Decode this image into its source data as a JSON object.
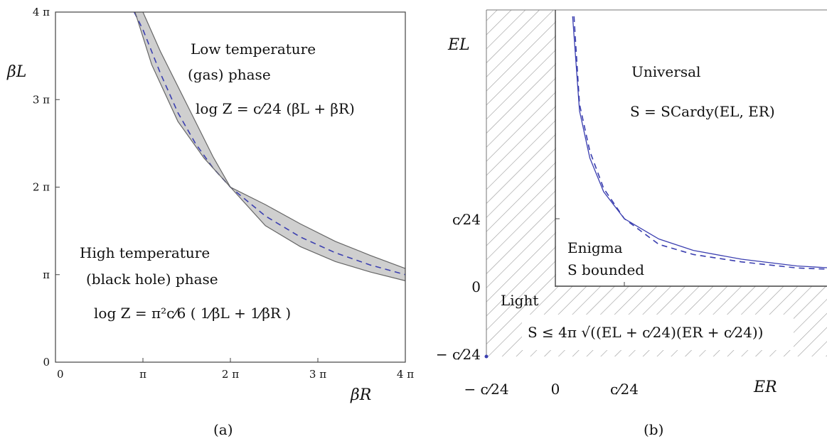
{
  "chart_data": [
    {
      "id": "a",
      "type": "area",
      "caption": "(a)",
      "xlabel": "βR",
      "ylabel": "βL",
      "xlim": [
        0,
        4
      ],
      "ylim": [
        0,
        4
      ],
      "x_ticks": [
        {
          "v": 0,
          "label": "0"
        },
        {
          "v": 1,
          "label": "π"
        },
        {
          "v": 2,
          "label": "2 π"
        },
        {
          "v": 3,
          "label": "3 π"
        },
        {
          "v": 4,
          "label": "4 π"
        }
      ],
      "y_ticks": [
        {
          "v": 0,
          "label": "0"
        },
        {
          "v": 1,
          "label": "π"
        },
        {
          "v": 2,
          "label": "2 π"
        },
        {
          "v": 3,
          "label": "3 π"
        },
        {
          "v": 4,
          "label": "4 π"
        }
      ],
      "series": [
        {
          "role": "critical-curve",
          "style": "dashed",
          "color": "#3b3fb0",
          "values": [
            [
              0.9,
              4.0
            ],
            [
              1.0,
              3.8
            ],
            [
              1.2,
              3.3
            ],
            [
              1.4,
              2.85
            ],
            [
              1.6,
              2.5
            ],
            [
              1.8,
              2.22
            ],
            [
              2.0,
              2.0
            ],
            [
              2.4,
              1.67
            ],
            [
              2.8,
              1.43
            ],
            [
              3.2,
              1.25
            ],
            [
              3.6,
              1.11
            ],
            [
              4.0,
              1.0
            ]
          ]
        },
        {
          "role": "band-upper",
          "style": "solid",
          "color": "#666666",
          "values": [
            [
              1.0,
              4.0
            ],
            [
              1.2,
              3.55
            ],
            [
              1.5,
              2.95
            ],
            [
              1.8,
              2.35
            ],
            [
              2.0,
              2.0
            ],
            [
              2.4,
              1.8
            ],
            [
              2.8,
              1.58
            ],
            [
              3.2,
              1.38
            ],
            [
              3.6,
              1.22
            ],
            [
              4.0,
              1.07
            ]
          ]
        },
        {
          "role": "band-lower",
          "style": "solid",
          "color": "#666666",
          "values": [
            [
              0.91,
              4.0
            ],
            [
              1.1,
              3.4
            ],
            [
              1.4,
              2.75
            ],
            [
              1.7,
              2.33
            ],
            [
              2.0,
              2.0
            ],
            [
              2.4,
              1.56
            ],
            [
              2.8,
              1.32
            ],
            [
              3.2,
              1.15
            ],
            [
              3.6,
              1.03
            ],
            [
              4.0,
              0.93
            ]
          ]
        }
      ],
      "band_fill": "#cfcfcf",
      "annotations": {
        "low_line1": "Low temperature",
        "low_line2": "(gas) phase",
        "low_formula": "log Z = c⁄24 (βL + βR)",
        "high_line1": "High temperature",
        "high_line2": "(black hole) phase",
        "high_formula": "log Z = π²c⁄6 ( 1⁄βL + 1⁄βR )"
      }
    },
    {
      "id": "b",
      "type": "line",
      "caption": "(b)",
      "xlabel": "ER",
      "ylabel": "EL",
      "x_ticks": [
        {
          "v": -1,
          "label": "− c⁄24"
        },
        {
          "v": 0,
          "label": "0"
        },
        {
          "v": 1,
          "label": "c⁄24"
        }
      ],
      "y_ticks": [
        {
          "v": -1,
          "label": "− c⁄24"
        },
        {
          "v": 0,
          "label": "0"
        },
        {
          "v": 1,
          "label": "c⁄24"
        }
      ],
      "series": [
        {
          "role": "solid-boundary",
          "style": "solid",
          "color": "#3b3fb0",
          "values": [
            [
              0.25,
              4.0
            ],
            [
              0.35,
              2.6
            ],
            [
              0.5,
              1.9
            ],
            [
              0.7,
              1.4
            ],
            [
              1.0,
              1.0
            ],
            [
              1.5,
              0.7
            ],
            [
              2.0,
              0.53
            ],
            [
              2.7,
              0.4
            ],
            [
              3.5,
              0.3
            ],
            [
              4.0,
              0.27
            ]
          ]
        },
        {
          "role": "dashed-boundary",
          "style": "dashed",
          "color": "#3b3fb0",
          "values": [
            [
              0.27,
              4.0
            ],
            [
              0.35,
              2.7
            ],
            [
              0.5,
              2.0
            ],
            [
              0.7,
              1.45
            ],
            [
              1.0,
              1.0
            ],
            [
              1.5,
              0.62
            ],
            [
              2.0,
              0.47
            ],
            [
              2.7,
              0.36
            ],
            [
              3.5,
              0.27
            ],
            [
              4.0,
              0.25
            ]
          ]
        }
      ],
      "annotations": {
        "universal": "Universal",
        "universal_formula": "S = SCardy(EL, ER)",
        "enigma_line1": "Enigma",
        "enigma_line2": "S bounded",
        "light": "Light",
        "light_formula": "S ≤ 4π √((EL + c⁄24)(ER + c⁄24))"
      }
    }
  ]
}
